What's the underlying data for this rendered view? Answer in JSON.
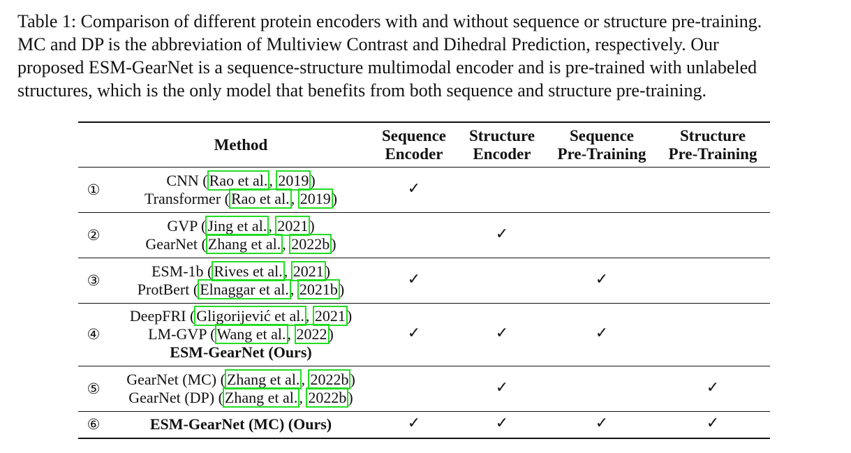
{
  "caption": {
    "lines": [
      "Table 1: Comparison of different protein encoders with and without sequence or structure pre-training.",
      "MC and DP is the abbreviation of Multiview Contrast and Dihedral Prediction, respectively. Our",
      "proposed ESM-GearNet is a sequence-structure multimodal encoder and is pre-trained with unlabeled",
      "structures, which is the only model that benefits from both sequence and structure pre-training."
    ]
  },
  "table": {
    "headers": {
      "method": "Method",
      "seq_encoder": [
        "Sequence",
        "Encoder"
      ],
      "struct_encoder": [
        "Structure",
        "Encoder"
      ],
      "seq_pretraining": [
        "Sequence",
        "Pre-Training"
      ],
      "struct_pretraining": [
        "Structure",
        "Pre-Training"
      ]
    },
    "check_symbol": "✓",
    "groups": [
      {
        "label": "①",
        "methods": [
          {
            "name": "CNN",
            "cite_author": "Rao et al.",
            "cite_year": "2019"
          },
          {
            "name": "Transformer",
            "cite_author": "Rao et al.",
            "cite_year": "2019"
          }
        ],
        "checks": {
          "seq_encoder": true,
          "struct_encoder": false,
          "seq_pretraining": false,
          "struct_pretraining": false
        }
      },
      {
        "label": "②",
        "methods": [
          {
            "name": "GVP",
            "cite_author": "Jing et al.",
            "cite_year": "2021"
          },
          {
            "name": "GearNet",
            "cite_author": "Zhang et al.",
            "cite_year": "2022b"
          }
        ],
        "checks": {
          "seq_encoder": false,
          "struct_encoder": true,
          "seq_pretraining": false,
          "struct_pretraining": false
        }
      },
      {
        "label": "③",
        "methods": [
          {
            "name": "ESM-1b",
            "cite_author": "Rives et al.",
            "cite_year": "2021"
          },
          {
            "name": "ProtBert",
            "cite_author": "Elnaggar et al.",
            "cite_year": "2021b"
          }
        ],
        "checks": {
          "seq_encoder": true,
          "struct_encoder": false,
          "seq_pretraining": true,
          "struct_pretraining": false
        }
      },
      {
        "label": "④",
        "methods": [
          {
            "name": "DeepFRI",
            "cite_author": "Gligorijević et al.",
            "cite_year": "2021"
          },
          {
            "name": "LM-GVP",
            "cite_author": "Wang et al.",
            "cite_year": "2022"
          },
          {
            "name": "ESM-GearNet (Ours)"
          }
        ],
        "checks": {
          "seq_encoder": true,
          "struct_encoder": true,
          "seq_pretraining": true,
          "struct_pretraining": false
        }
      },
      {
        "label": "⑤",
        "methods": [
          {
            "name": "GearNet (MC)",
            "cite_author": "Zhang et al.",
            "cite_year": "2022b"
          },
          {
            "name": "GearNet (DP)",
            "cite_author": "Zhang et al.",
            "cite_year": "2022b"
          }
        ],
        "checks": {
          "seq_encoder": false,
          "struct_encoder": true,
          "seq_pretraining": false,
          "struct_pretraining": true
        }
      },
      {
        "label": "⑥",
        "methods": [
          {
            "name": "ESM-GearNet (MC) (Ours)"
          }
        ],
        "checks": {
          "seq_encoder": true,
          "struct_encoder": true,
          "seq_pretraining": true,
          "struct_pretraining": true
        }
      }
    ]
  }
}
